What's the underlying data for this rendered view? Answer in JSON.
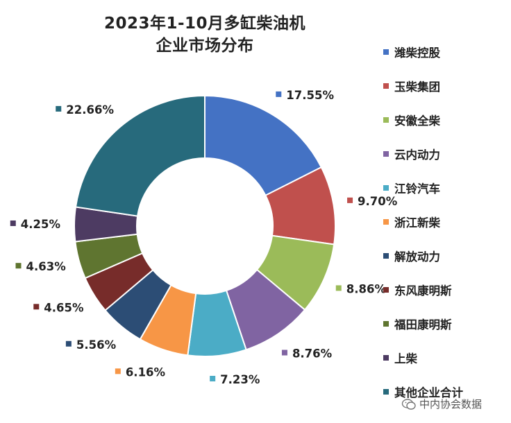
{
  "chart_data": {
    "type": "donut",
    "title_lines": [
      "2023年1-10月多缸柴油机",
      "企业市场分布"
    ],
    "categories": [
      "潍柴控股",
      "玉柴集团",
      "安徽全柴",
      "云内动力",
      "江铃汽车",
      "浙江新柴",
      "解放动力",
      "东风康明斯",
      "福田康明斯",
      "上柴",
      "其他企业合计"
    ],
    "values": [
      17.55,
      9.7,
      8.86,
      8.76,
      7.23,
      6.16,
      5.56,
      4.65,
      4.63,
      4.25,
      22.66
    ],
    "value_labels": [
      "17.55%",
      "9.70%",
      "8.86%",
      "8.76%",
      "7.23%",
      "6.16%",
      "5.56%",
      "4.65%",
      "4.63%",
      "4.25%",
      "22.66%"
    ],
    "colors": [
      "#4472C4",
      "#C0504D",
      "#9BBB59",
      "#8064A2",
      "#4BACC6",
      "#F79646",
      "#2C4D75",
      "#772C2A",
      "#5F7530",
      "#4D3B62",
      "#276A7C"
    ],
    "unit": "%",
    "legend_position": "right"
  },
  "watermark": {
    "icon": "wechat-icon",
    "text": "中内协会数据"
  }
}
